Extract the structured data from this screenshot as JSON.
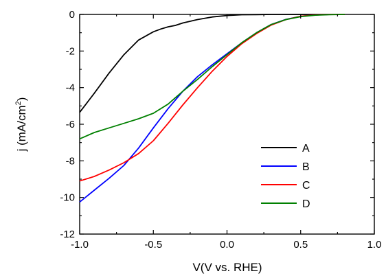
{
  "chart_data": {
    "type": "line",
    "xlabel": "V(V vs. RHE)",
    "ylabel": "j (mA/cm",
    "ylabel_sup": "2",
    "ylabel_close": ")",
    "xlim": [
      -1.0,
      1.0
    ],
    "ylim": [
      -12,
      0
    ],
    "xticks": [
      -1.0,
      -0.5,
      0.0,
      0.5,
      1.0
    ],
    "xtick_labels": [
      "-1.0",
      "-0.5",
      "0.0",
      "0.5",
      "1.0"
    ],
    "yticks": [
      0,
      -2,
      -4,
      -6,
      -8,
      -10,
      -12
    ],
    "ytick_labels": [
      "0",
      "-2",
      "-4",
      "-6",
      "-8",
      "-10",
      "-12"
    ],
    "grid": false,
    "legend_position": "bottom-right",
    "series": [
      {
        "name": "A",
        "color": "#000000",
        "x": [
          -1.0,
          -0.9,
          -0.8,
          -0.7,
          -0.6,
          -0.5,
          -0.45,
          -0.4,
          -0.35,
          -0.3,
          -0.2,
          -0.1,
          0.0,
          0.1,
          0.2,
          0.3,
          0.4,
          0.5,
          0.6,
          0.7,
          0.8
        ],
        "y": [
          -5.35,
          -4.3,
          -3.2,
          -2.2,
          -1.4,
          -0.95,
          -0.8,
          -0.68,
          -0.6,
          -0.47,
          -0.28,
          -0.14,
          -0.06,
          -0.02,
          -0.01,
          0,
          0,
          0,
          0,
          0,
          0
        ]
      },
      {
        "name": "B",
        "color": "#0000ff",
        "x": [
          -1.0,
          -0.9,
          -0.8,
          -0.7,
          -0.6,
          -0.5,
          -0.4,
          -0.3,
          -0.2,
          -0.1,
          0.0,
          0.1,
          0.2,
          0.3,
          0.4,
          0.5,
          0.6,
          0.7,
          0.8
        ],
        "y": [
          -10.25,
          -9.6,
          -8.95,
          -8.25,
          -7.3,
          -6.2,
          -5.15,
          -4.2,
          -3.4,
          -2.75,
          -2.15,
          -1.55,
          -1.0,
          -0.55,
          -0.27,
          -0.1,
          -0.03,
          0,
          0
        ]
      },
      {
        "name": "C",
        "color": "#ff0000",
        "x": [
          -1.0,
          -0.9,
          -0.8,
          -0.7,
          -0.6,
          -0.5,
          -0.4,
          -0.3,
          -0.2,
          -0.1,
          0.0,
          0.1,
          0.2,
          0.3,
          0.4,
          0.5,
          0.6,
          0.7,
          0.8
        ],
        "y": [
          -9.1,
          -8.85,
          -8.5,
          -8.1,
          -7.6,
          -6.9,
          -5.95,
          -4.95,
          -4.0,
          -3.1,
          -2.3,
          -1.6,
          -1.05,
          -0.58,
          -0.28,
          -0.1,
          -0.03,
          0,
          0
        ]
      },
      {
        "name": "D",
        "color": "#008000",
        "x": [
          -1.0,
          -0.9,
          -0.8,
          -0.7,
          -0.6,
          -0.5,
          -0.4,
          -0.35,
          -0.3,
          -0.2,
          -0.1,
          0.0,
          0.1,
          0.2,
          0.3,
          0.4,
          0.5,
          0.6,
          0.7,
          0.8
        ],
        "y": [
          -6.8,
          -6.45,
          -6.2,
          -5.95,
          -5.7,
          -5.4,
          -4.9,
          -4.55,
          -4.2,
          -3.55,
          -2.85,
          -2.2,
          -1.55,
          -1.0,
          -0.55,
          -0.28,
          -0.12,
          -0.04,
          -0.01,
          0
        ]
      }
    ]
  }
}
